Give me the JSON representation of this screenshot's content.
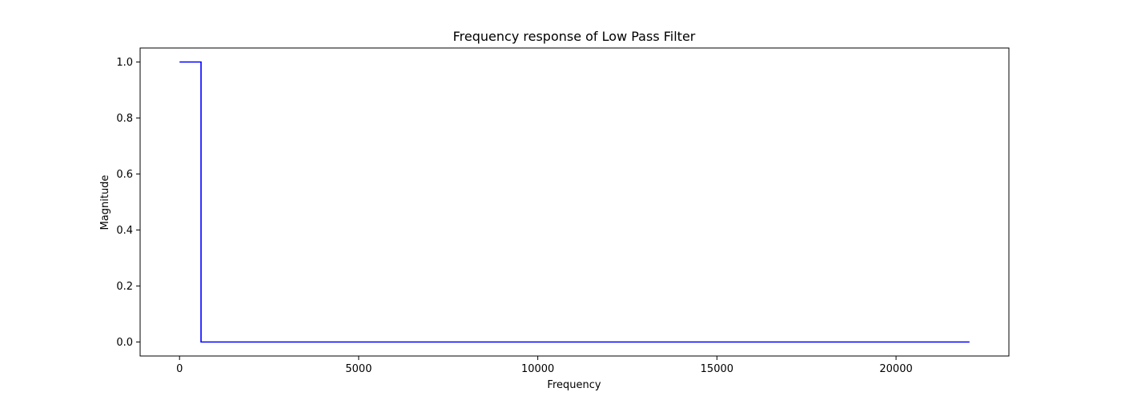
{
  "chart_data": {
    "type": "line",
    "title": "Frequency response of Low Pass Filter",
    "xlabel": "Frequency",
    "ylabel": "Magnitude",
    "xlim": [
      -1100,
      23150
    ],
    "ylim": [
      -0.05,
      1.05
    ],
    "xticks": [
      0,
      5000,
      10000,
      15000,
      20000
    ],
    "xtick_labels": [
      "0",
      "5000",
      "10000",
      "15000",
      "20000"
    ],
    "yticks": [
      0.0,
      0.2,
      0.4,
      0.6,
      0.8,
      1.0
    ],
    "ytick_labels": [
      "0.0",
      "0.2",
      "0.4",
      "0.6",
      "0.8",
      "1.0"
    ],
    "grid": false,
    "series": [
      {
        "color": "#0000ff",
        "x": [
          0,
          600,
          600,
          22050
        ],
        "y": [
          1.0,
          1.0,
          0.0,
          0.0
        ]
      }
    ]
  }
}
